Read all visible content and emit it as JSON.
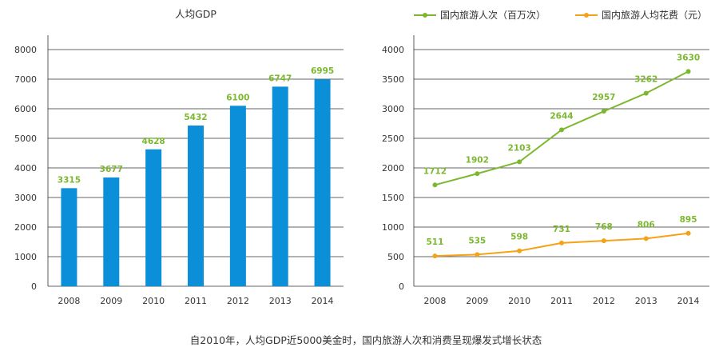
{
  "caption": "自2010年，人均GDP近5000美金时，国内旅游人次和消费呈现爆发式增长状态",
  "colors": {
    "bar": "#0a8fd8",
    "tourists": "#7cb82f",
    "spending": "#f5a218",
    "grid": "#333333",
    "label": "#7cb82f"
  },
  "chart_data": [
    {
      "type": "bar",
      "title": "人均GDP",
      "categories": [
        "2008",
        "2009",
        "2010",
        "2011",
        "2012",
        "2013",
        "2014"
      ],
      "values": [
        3315,
        3677,
        4628,
        5432,
        6100,
        6747,
        6995
      ],
      "value_labels": [
        "3315",
        "3677",
        "4628",
        "5432",
        "6100",
        "6747",
        "6995"
      ],
      "yticks": [
        "0",
        "1000",
        "2000",
        "3000",
        "4000",
        "5000",
        "6000",
        "7000",
        "8000"
      ],
      "ylim": [
        0,
        8000
      ],
      "grid": true
    },
    {
      "type": "line",
      "categories": [
        "2008",
        "2009",
        "2010",
        "2011",
        "2012",
        "2013",
        "2014"
      ],
      "series": [
        {
          "name": "国内旅游人次（百万次）",
          "values": [
            1712,
            1902,
            2103,
            2644,
            2957,
            3262,
            3630
          ],
          "value_labels": [
            "1712",
            "1902",
            "2103",
            "2644",
            "2957",
            "3262",
            "3630"
          ]
        },
        {
          "name": "国内旅游人均花费（元）",
          "values": [
            511,
            535,
            598,
            731,
            768,
            806,
            895
          ],
          "value_labels": [
            "511",
            "535",
            "598",
            "731",
            "768",
            "806",
            "895"
          ]
        }
      ],
      "yticks": [
        "0",
        "500",
        "1000",
        "1500",
        "2000",
        "2500",
        "3000",
        "3500",
        "4000"
      ],
      "ylim": [
        0,
        4000
      ],
      "legend_position": "top",
      "grid": true
    }
  ]
}
